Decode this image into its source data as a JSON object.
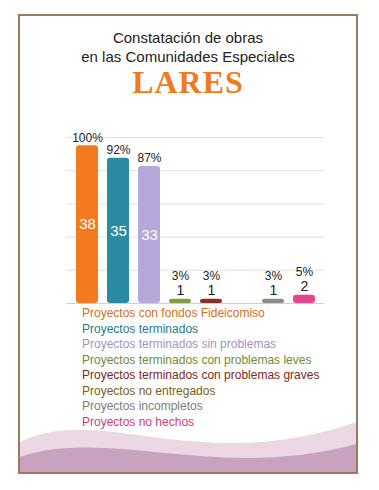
{
  "chart_data": {
    "type": "bar",
    "title": "Constatación de obras\nen las Comunidades Especiales",
    "subtitle": "LARES",
    "categories": [
      "Proyectos con fondos Fideicomiso",
      "Proyectos terminados",
      "Proyectos terminados sin problemas",
      "Proyectos terminados con problemas leves",
      "Proyectos terminados con problemas graves",
      "Proyectos no entregados",
      "Proyectos incompletos",
      "Proyectos no hechos"
    ],
    "values": [
      38,
      35,
      33,
      1,
      1,
      0,
      1,
      2
    ],
    "value_labels": [
      "38",
      "35",
      "33",
      "1",
      "1",
      null,
      "1",
      "2"
    ],
    "percentage_labels": [
      "100%",
      "92%",
      "87%",
      "3%",
      "3%",
      null,
      "3%",
      "5%"
    ],
    "colors": [
      "#f47a20",
      "#2a8aa2",
      "#b6a8d8",
      "#7e9e3e",
      "#8e2c2c",
      "#8a6a1a",
      "#8c8c8c",
      "#e8458c"
    ],
    "ylim": [
      0,
      40
    ],
    "yticks": [
      0,
      8,
      16,
      24,
      32,
      40
    ],
    "grid": true,
    "data_labels": true,
    "tick_labels": false,
    "legend": "bottom"
  }
}
